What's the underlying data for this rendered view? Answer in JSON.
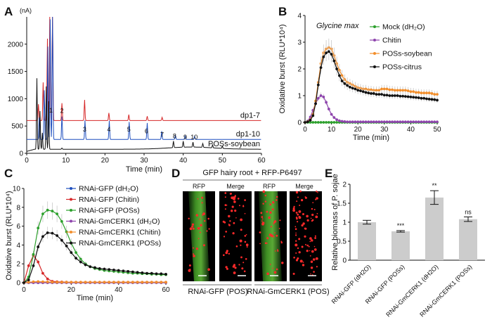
{
  "panels": {
    "A": "A",
    "B": "B",
    "C": "C",
    "D": "D",
    "E": "E"
  },
  "chart_data": [
    {
      "id": "A",
      "type": "line",
      "yunit": "(nA)",
      "xlabel": "Time (min)",
      "xlim": [
        0,
        60
      ],
      "yticks": [
        0,
        500,
        1000,
        1500,
        2000
      ],
      "xticks": [
        0,
        10,
        20,
        30,
        40,
        50,
        60
      ],
      "series": [
        {
          "name": "dp1-7",
          "color": "#d62728",
          "baseline": 600
        },
        {
          "name": "dp1-10",
          "color": "#1f4fbf",
          "baseline": 255
        },
        {
          "name": "POSs-soybean",
          "color": "#111111",
          "baseline": 75
        }
      ],
      "peak_labels": [
        "1",
        "2",
        "3",
        "4",
        "5",
        "6",
        "7",
        "8",
        "9",
        "10"
      ],
      "peak_label_times": [
        6.2,
        9.0,
        14.8,
        21.0,
        26.1,
        30.6,
        34.6,
        37.8,
        40.5,
        42.8
      ],
      "peak_label_values": [
        750,
        740,
        400,
        400,
        400,
        370,
        300,
        280,
        255,
        255
      ]
    },
    {
      "id": "B",
      "type": "line",
      "title": "Glycine max",
      "ylabel": "Oxidative burst (RLU*10⁴)",
      "xlabel": "Time (min)",
      "xlim": [
        0,
        50
      ],
      "ylim": [
        0,
        4
      ],
      "xticks": [
        0,
        10,
        20,
        30,
        40,
        50
      ],
      "yticks": [
        0,
        1,
        2,
        3,
        4
      ],
      "x": [
        0,
        1,
        2,
        3,
        4,
        5,
        6,
        7,
        8,
        9,
        10,
        11,
        12,
        13,
        14,
        15,
        16,
        17,
        18,
        19,
        20,
        21,
        22,
        23,
        24,
        25,
        26,
        27,
        28,
        29,
        30,
        31,
        32,
        33,
        34,
        35,
        36,
        37,
        38,
        39,
        40,
        41,
        42,
        43,
        44,
        45,
        46,
        47,
        48,
        49,
        50
      ],
      "series": [
        {
          "name": "Mock (dH₂O)",
          "color": "#2ca02c",
          "values": [
            0,
            0,
            0,
            0,
            0,
            0,
            0,
            0,
            0,
            0,
            0,
            0,
            0,
            0,
            0,
            0,
            0,
            0,
            0,
            0,
            0,
            0,
            0,
            0,
            0,
            0,
            0,
            0,
            0,
            0,
            0,
            0,
            0,
            0,
            0,
            0,
            0,
            0,
            0,
            0,
            0,
            0,
            0,
            0,
            0,
            0,
            0,
            0,
            0,
            0,
            0
          ]
        },
        {
          "name": "Chitin",
          "color": "#8e44ad",
          "values": [
            0,
            0.05,
            0.2,
            0.45,
            0.7,
            0.9,
            1.0,
            0.95,
            0.75,
            0.5,
            0.3,
            0.18,
            0.1,
            0.06,
            0.04,
            0.03,
            0.02,
            0.02,
            0.02,
            0.02,
            0.02,
            0.02,
            0.02,
            0.02,
            0.02,
            0.02,
            0.02,
            0.02,
            0.02,
            0.02,
            0.02,
            0.02,
            0.02,
            0.02,
            0.02,
            0.02,
            0.02,
            0.02,
            0.02,
            0.02,
            0.02,
            0.02,
            0.02,
            0.02,
            0.02,
            0.02,
            0.02,
            0.02,
            0.02,
            0.02,
            0.02
          ]
        },
        {
          "name": "POSs-soybean",
          "color": "#f28e2b",
          "values": [
            0,
            0.03,
            0.1,
            0.3,
            0.8,
            1.5,
            2.2,
            2.6,
            2.75,
            2.8,
            2.75,
            2.5,
            2.2,
            1.95,
            1.75,
            1.6,
            1.5,
            1.45,
            1.4,
            1.35,
            1.3,
            1.28,
            1.25,
            1.25,
            1.22,
            1.22,
            1.2,
            1.2,
            1.2,
            1.25,
            1.25,
            1.25,
            1.22,
            1.22,
            1.2,
            1.2,
            1.2,
            1.2,
            1.2,
            1.18,
            1.15,
            1.15,
            1.12,
            1.12,
            1.1,
            1.1,
            1.1,
            1.1,
            1.08,
            1.05,
            1.05
          ]
        },
        {
          "name": "POSs-citrus",
          "color": "#111111",
          "values": [
            0,
            0.02,
            0.08,
            0.25,
            0.7,
            1.4,
            2.05,
            2.45,
            2.6,
            2.65,
            2.55,
            2.3,
            2.0,
            1.75,
            1.55,
            1.45,
            1.38,
            1.32,
            1.28,
            1.25,
            1.2,
            1.18,
            1.15,
            1.12,
            1.1,
            1.08,
            1.08,
            1.05,
            1.05,
            1.05,
            1.02,
            1.02,
            1.0,
            1.0,
            1.0,
            1.0,
            0.98,
            0.98,
            0.97,
            0.96,
            0.95,
            0.94,
            0.93,
            0.92,
            0.9,
            0.9,
            0.88,
            0.87,
            0.86,
            0.85,
            0.83
          ]
        }
      ]
    },
    {
      "id": "C",
      "type": "line",
      "ylabel": "Oxidative burst (RLU*10⁴)",
      "xlabel": "Time (min)",
      "xlim": [
        0,
        60
      ],
      "ylim": [
        0,
        10
      ],
      "xticks": [
        0,
        20,
        40,
        60
      ],
      "yticks": [
        0,
        2,
        4,
        6,
        8,
        10
      ],
      "x": [
        0,
        2,
        4,
        6,
        8,
        10,
        12,
        14,
        16,
        18,
        20,
        22,
        24,
        26,
        28,
        30,
        32,
        34,
        36,
        38,
        40,
        42,
        44,
        46,
        48,
        50,
        52,
        54,
        56,
        58,
        60
      ],
      "series": [
        {
          "name": "RNAi-GFP (dH₂O)",
          "color": "#1f4fbf",
          "values": [
            0,
            0,
            0,
            0,
            0,
            0,
            0,
            0,
            0,
            0,
            0,
            0,
            0,
            0,
            0,
            0,
            0,
            0,
            0,
            0,
            0,
            0,
            0,
            0,
            0,
            0,
            0,
            0,
            0,
            0,
            0
          ]
        },
        {
          "name": "RNAi-GFP (Chitin)",
          "color": "#d62728",
          "values": [
            0,
            1.8,
            2.9,
            2.2,
            1.0,
            0.4,
            0.15,
            0.1,
            0.08,
            0.06,
            0.05,
            0.05,
            0.05,
            0.05,
            0.05,
            0.05,
            0.05,
            0.05,
            0.05,
            0.05,
            0.05,
            0.05,
            0.05,
            0.05,
            0.05,
            0.05,
            0.05,
            0.05,
            0.05,
            0.05,
            0.05
          ]
        },
        {
          "name": "RNAi-GFP (POSs)",
          "color": "#2ca02c",
          "values": [
            0,
            0.6,
            3.0,
            5.8,
            7.3,
            7.7,
            7.6,
            7.3,
            6.5,
            5.4,
            4.2,
            3.2,
            2.5,
            2.0,
            1.7,
            1.5,
            1.4,
            1.3,
            1.25,
            1.2,
            1.15,
            1.1,
            1.05,
            1.0,
            1.0,
            0.95,
            0.95,
            0.9,
            0.9,
            0.85,
            0.85
          ]
        },
        {
          "name": "RNAi-GmCERK1 (dH₂O)",
          "color": "#8e44ad",
          "values": [
            0,
            0,
            0,
            0,
            0,
            0,
            0,
            0,
            0,
            0,
            0,
            0,
            0,
            0,
            0,
            0,
            0,
            0,
            0,
            0,
            0,
            0,
            0,
            0,
            0,
            0,
            0,
            0,
            0,
            0,
            0
          ]
        },
        {
          "name": "RNAi-GmCERK1 (Chitin)",
          "color": "#f28e2b",
          "values": [
            0,
            0.05,
            0.1,
            0.12,
            0.1,
            0.08,
            0.06,
            0.05,
            0.05,
            0.05,
            0.05,
            0.05,
            0.05,
            0.05,
            0.05,
            0.05,
            0.05,
            0.05,
            0.05,
            0.05,
            0.05,
            0.05,
            0.05,
            0.05,
            0.05,
            0.05,
            0.05,
            0.05,
            0.05,
            0.05,
            0.05
          ]
        },
        {
          "name": "RNAi-GmCERK1 (POSs)",
          "color": "#111111",
          "values": [
            0,
            0.3,
            1.8,
            3.8,
            4.9,
            5.3,
            5.25,
            5.0,
            4.5,
            3.9,
            3.2,
            2.6,
            2.2,
            1.9,
            1.7,
            1.6,
            1.5,
            1.45,
            1.4,
            1.35,
            1.3,
            1.25,
            1.2,
            1.15,
            1.1,
            1.05,
            1.0,
            1.0,
            0.95,
            0.95,
            0.9
          ]
        }
      ]
    },
    {
      "id": "E",
      "type": "bar",
      "ylabel": "Relative biomass of P. sojae",
      "ylim": [
        0,
        2
      ],
      "yticks": [
        0,
        0.5,
        1.0,
        1.5,
        2.0
      ],
      "categories": [
        "RNAi-GFP (dH2O)",
        "RNAi-GFP (POSs)",
        "RNAi-GmCERK1 (dH2O)",
        "RNAi-GmCERK1 (POSs)"
      ],
      "values": [
        1.0,
        0.76,
        1.65,
        1.08
      ],
      "errors": [
        0.05,
        0.02,
        0.18,
        0.06
      ],
      "significance": [
        "",
        "***",
        "**",
        "ns"
      ],
      "bar_color": "#cccccc"
    }
  ],
  "figureD": {
    "title": "GFP hairy root + RFP-P6497",
    "col_labels": [
      "RFP",
      "Merge",
      "RFP",
      "Merge"
    ],
    "captions": [
      "RNAi-GFP (POS)",
      "RNAi-GmCERK1 (POS)"
    ]
  }
}
